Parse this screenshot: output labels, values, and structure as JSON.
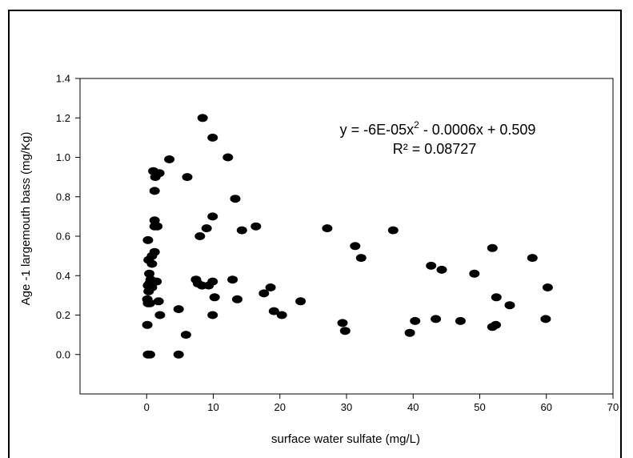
{
  "chart_data": {
    "type": "scatter",
    "xlabel": "surface water sulfate (mg/L)",
    "ylabel": "Age -1 largemouth bass (mg/Kg)",
    "xlim": [
      -10,
      70
    ],
    "ylim": [
      -0.2,
      1.4
    ],
    "xticks": [
      0,
      10,
      20,
      30,
      40,
      50,
      60,
      70
    ],
    "xtick_labels": [
      "0",
      "10",
      "20",
      "30",
      "40",
      "50",
      "60",
      "70"
    ],
    "yticks": [
      0.0,
      0.2,
      0.4,
      0.6,
      0.8,
      1.0,
      1.2,
      1.4
    ],
    "ytick_labels": [
      "0.0",
      "0.2",
      "0.4",
      "0.6",
      "0.8",
      "1.0",
      "1.2",
      "1.4"
    ],
    "grid": false,
    "equation": {
      "line1_prefix": "y = -6E-05x",
      "line1_sup": "2",
      "line1_suffix": " - 0.0006x + 0.509",
      "line2": "R² = 0.08727"
    },
    "series": [
      {
        "points": [
          [
            0.2,
            0.0
          ],
          [
            0.5,
            0.0
          ],
          [
            4.8,
            0.0
          ],
          [
            0.1,
            0.15
          ],
          [
            0.2,
            0.26
          ],
          [
            0.5,
            0.26
          ],
          [
            0.1,
            0.28
          ],
          [
            0.3,
            0.32
          ],
          [
            0.2,
            0.35
          ],
          [
            0.4,
            0.36
          ],
          [
            0.8,
            0.34
          ],
          [
            1.5,
            0.37
          ],
          [
            0.6,
            0.38
          ],
          [
            0.4,
            0.41
          ],
          [
            0.3,
            0.48
          ],
          [
            0.8,
            0.46
          ],
          [
            0.8,
            0.5
          ],
          [
            1.2,
            0.52
          ],
          [
            0.2,
            0.58
          ],
          [
            1.2,
            0.65
          ],
          [
            1.2,
            0.68
          ],
          [
            1.6,
            0.65
          ],
          [
            1.2,
            0.83
          ],
          [
            1.3,
            0.9
          ],
          [
            1.0,
            0.93
          ],
          [
            1.9,
            0.92
          ],
          [
            3.4,
            0.99
          ],
          [
            1.8,
            0.27
          ],
          [
            2.0,
            0.2
          ],
          [
            4.8,
            0.23
          ],
          [
            5.9,
            0.1
          ],
          [
            6.1,
            0.9
          ],
          [
            7.4,
            0.38
          ],
          [
            7.7,
            0.36
          ],
          [
            8.3,
            0.35
          ],
          [
            8.0,
            0.6
          ],
          [
            8.4,
            1.2
          ],
          [
            9.0,
            0.64
          ],
          [
            9.3,
            0.35
          ],
          [
            9.9,
            0.37
          ],
          [
            9.9,
            0.2
          ],
          [
            10.2,
            0.29
          ],
          [
            9.9,
            0.7
          ],
          [
            9.9,
            1.1
          ],
          [
            12.2,
            1.0
          ],
          [
            13.3,
            0.79
          ],
          [
            12.9,
            0.38
          ],
          [
            13.6,
            0.28
          ],
          [
            14.3,
            0.63
          ],
          [
            16.4,
            0.65
          ],
          [
            17.6,
            0.31
          ],
          [
            18.6,
            0.34
          ],
          [
            19.1,
            0.22
          ],
          [
            20.3,
            0.2
          ],
          [
            23.1,
            0.27
          ],
          [
            27.1,
            0.64
          ],
          [
            29.4,
            0.16
          ],
          [
            29.8,
            0.12
          ],
          [
            31.3,
            0.55
          ],
          [
            32.2,
            0.49
          ],
          [
            37.0,
            0.63
          ],
          [
            39.5,
            0.11
          ],
          [
            40.3,
            0.17
          ],
          [
            42.7,
            0.45
          ],
          [
            43.4,
            0.18
          ],
          [
            44.3,
            0.43
          ],
          [
            47.1,
            0.17
          ],
          [
            49.2,
            0.41
          ],
          [
            51.9,
            0.54
          ],
          [
            51.9,
            0.14
          ],
          [
            52.4,
            0.15
          ],
          [
            52.5,
            0.29
          ],
          [
            54.5,
            0.25
          ],
          [
            57.9,
            0.49
          ],
          [
            59.9,
            0.18
          ],
          [
            60.2,
            0.34
          ]
        ]
      }
    ]
  }
}
